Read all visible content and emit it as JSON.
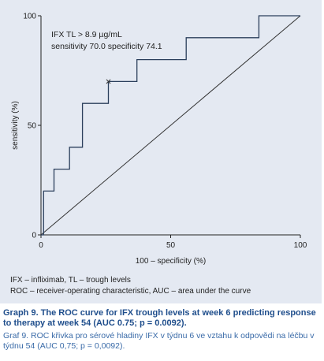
{
  "chart_data": {
    "type": "line",
    "xlabel": "100 – specificity (%)",
    "ylabel": "sensitivity (%)",
    "xlim": [
      0,
      100
    ],
    "ylim": [
      0,
      100
    ],
    "xticks": [
      "0",
      "50",
      "100"
    ],
    "yticks": [
      "0",
      "50",
      "100"
    ],
    "grid": false,
    "series": [
      {
        "points": [
          [
            0,
            0
          ],
          [
            1,
            0
          ],
          [
            1,
            20
          ],
          [
            5,
            20
          ],
          [
            5,
            30
          ],
          [
            11,
            30
          ],
          [
            11,
            40
          ],
          [
            16,
            40
          ],
          [
            16,
            60
          ],
          [
            26,
            60
          ],
          [
            26,
            70
          ],
          [
            37,
            70
          ],
          [
            37,
            80
          ],
          [
            56,
            80
          ],
          [
            56,
            90
          ],
          [
            84,
            90
          ],
          [
            84,
            100
          ],
          [
            100,
            100
          ]
        ]
      },
      {
        "points": [
          [
            0,
            0
          ],
          [
            100,
            100
          ]
        ]
      }
    ],
    "cutoff_point": [
      26,
      70
    ],
    "annotation": [
      "IFX TL > 8.9 µg/mL",
      "sensitivity 70.0  specificity 74.1"
    ]
  },
  "legend": {
    "line1": "IFX – infliximab, TL – trough levels",
    "line2": "ROC – receiver-operating characteristic, AUC – area under the curve"
  },
  "caption": {
    "english": "Graph 9. The ROC curve for IFX trough levels at week 6 predicting response to therapy at week 54 (AUC 0.75; p = 0.0092).",
    "czech": "Graf 9. ROC křivka pro sérové hladiny IFX v týdnu 6 ve vztahu k odpovědi na léčbu v týdnu 54 (AUC 0,75; p = 0,0092)."
  }
}
